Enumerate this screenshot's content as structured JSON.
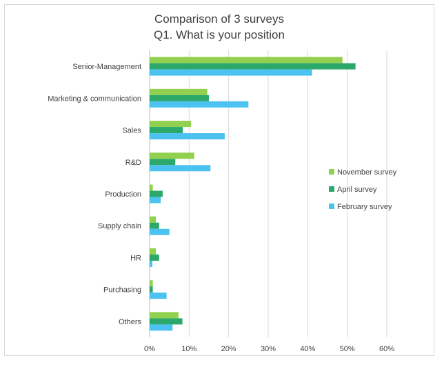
{
  "chart_data": {
    "type": "bar",
    "orientation": "horizontal",
    "title_lines": [
      "Comparison of 3 surveys",
      "Q1. What is your position"
    ],
    "categories": [
      "Senior-Management",
      "Marketing & communication",
      "Sales",
      "R&D",
      "Production",
      "Supply chain",
      "HR",
      "Purchasing",
      "Others"
    ],
    "series": [
      {
        "name": "November survey",
        "color": "#92d050",
        "values": [
          48.8,
          14.6,
          10.5,
          11.3,
          0.8,
          1.6,
          1.6,
          0.8,
          7.3
        ]
      },
      {
        "name": "April survey",
        "color": "#2ca86b",
        "values": [
          52.1,
          15.0,
          8.4,
          6.5,
          3.3,
          2.4,
          2.4,
          0.8,
          8.3
        ]
      },
      {
        "name": "February survey",
        "color": "#4cc2f0",
        "values": [
          41.1,
          25.0,
          19.0,
          15.4,
          2.8,
          5.0,
          0.7,
          4.3,
          5.8
        ]
      }
    ],
    "xlim": [
      0,
      60
    ],
    "xticks": [
      0,
      10,
      20,
      30,
      40,
      50,
      60
    ],
    "xtick_labels": [
      "0%",
      "10%",
      "20%",
      "30%",
      "40%",
      "50%",
      "60%"
    ],
    "xlabel": "",
    "ylabel": "",
    "grid": "vertical",
    "legend_position": "right"
  }
}
